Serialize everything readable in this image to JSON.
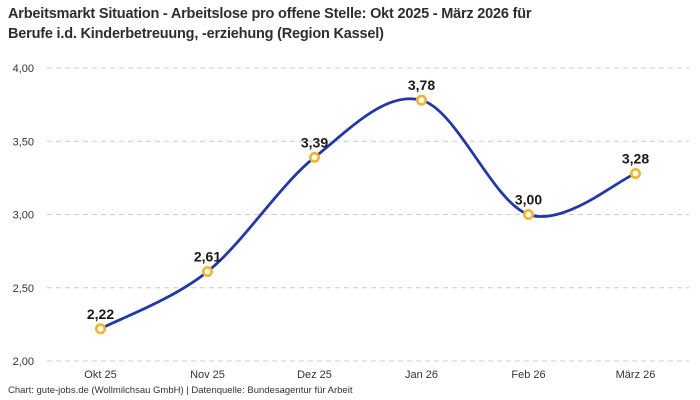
{
  "title": {
    "line1": "Arbeitsmarkt Situation - Arbeitslose pro offene Stelle: Okt 2025 - März 2026 für",
    "line2": "Berufe i.d. Kinderbetreuung, -erziehung (Region Kassel)"
  },
  "footer": {
    "text": "Chart: gute-jobs.de (Wollmilchsau GmbH) | Datenquelle: Bundesagentur für Arbeit"
  },
  "chart_data": {
    "type": "line",
    "title": "Arbeitsmarkt Situation - Arbeitslose pro offene Stelle: Okt 2025 - März 2026 für Berufe i.d. Kinderbetreuung, -erziehung (Region Kassel)",
    "categories": [
      "Okt 25",
      "Nov 25",
      "Dez 25",
      "Jan 26",
      "Feb 26",
      "März 26"
    ],
    "values": [
      2.22,
      2.61,
      3.39,
      3.78,
      3.0,
      3.28
    ],
    "value_labels": [
      "2,22",
      "2,61",
      "3,39",
      "3,78",
      "3,00",
      "3,28"
    ],
    "xlabel": "",
    "ylabel": "",
    "ylim": [
      2.0,
      4.0
    ],
    "y_ticks": [
      {
        "value": 2.0,
        "label": "2,00"
      },
      {
        "value": 2.5,
        "label": "2,50"
      },
      {
        "value": 3.0,
        "label": "3,00"
      },
      {
        "value": 3.5,
        "label": "3,50"
      },
      {
        "value": 4.0,
        "label": "4,00"
      }
    ],
    "grid": "horizontal-dashed",
    "legend": "none",
    "curve": "smooth",
    "colors": {
      "line": "#2438A3",
      "marker_ring": "#F3B42F",
      "marker_fill": "#FFFFFF",
      "grid": "#CCCCCC",
      "axis_text": "#333333",
      "data_label_text": "#1A1A1A",
      "background": "#FFFFFF"
    }
  }
}
